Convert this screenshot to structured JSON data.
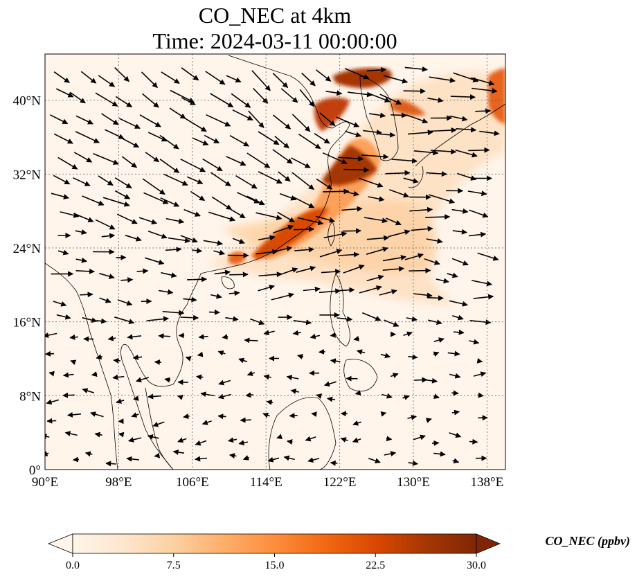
{
  "title": {
    "line1": "CO_NEC at 4km",
    "line2": "Time: 2024-03-11 00:00:00"
  },
  "map": {
    "lon_range": [
      90,
      140
    ],
    "lat_range": [
      0,
      45
    ],
    "x_ticks": [
      "90°E",
      "98°E",
      "106°E",
      "114°E",
      "122°E",
      "130°E",
      "138°E"
    ],
    "x_tick_values": [
      90,
      98,
      106,
      114,
      122,
      130,
      138
    ],
    "y_ticks": [
      "0°",
      "8°N",
      "16°N",
      "24°N",
      "32°N",
      "40°N"
    ],
    "y_tick_values": [
      0,
      8,
      16,
      24,
      32,
      40
    ],
    "gridlines": true,
    "background_color": "#fff5eb"
  },
  "colorbar": {
    "label": "CO_NEC (ppbv)",
    "ticks": [
      "0.0",
      "7.5",
      "15.0",
      "22.5",
      "30.0"
    ],
    "tick_values": [
      0,
      7.5,
      15,
      22.5,
      30
    ],
    "range": [
      0,
      30
    ],
    "extend": "both",
    "colormap": [
      "#fff5eb",
      "#fee6ce",
      "#fdd0a2",
      "#fdae6b",
      "#fd8d3c",
      "#f16913",
      "#d94801",
      "#a63603",
      "#7f2704"
    ]
  }
}
